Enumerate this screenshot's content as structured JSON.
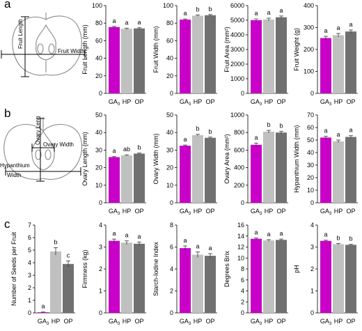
{
  "panels": [
    {
      "letter": "a",
      "diagram_labels": [
        "Fruit Length",
        "Fruit Width"
      ]
    },
    {
      "letter": "b",
      "diagram_labels": [
        "Ovary Length",
        "Ovary Width",
        "Hypanthium",
        "Width"
      ]
    },
    {
      "letter": "c",
      "diagram_labels": []
    }
  ],
  "colors": {
    "GA3": "#c800c8",
    "HP": "#c0c0c0",
    "OP": "#707070"
  },
  "chart_data": [
    {
      "type": "bar",
      "categories": [
        "GA3",
        "HP",
        "OP"
      ],
      "values": [
        75.5,
        73.5,
        74
      ],
      "errors": [
        0.8,
        0.8,
        0.8
      ],
      "letters": [
        "a",
        "a",
        "a"
      ],
      "ylabel": "Fruit Length (mm)",
      "ylim": [
        0,
        100
      ],
      "yticks": [
        "0",
        "20",
        "40",
        "60",
        "80",
        "100"
      ]
    },
    {
      "type": "bar",
      "categories": [
        "GA3",
        "HP",
        "OP"
      ],
      "values": [
        84,
        88.5,
        89
      ],
      "errors": [
        0.8,
        0.8,
        0.8
      ],
      "letters": [
        "a",
        "b",
        "b"
      ],
      "ylabel": "Fruit Width (mm)",
      "ylim": [
        0,
        100
      ],
      "yticks": [
        "0",
        "20",
        "40",
        "60",
        "80",
        "100"
      ]
    },
    {
      "type": "bar",
      "categories": [
        "GA3",
        "HP",
        "OP"
      ],
      "values": [
        5000,
        5050,
        5200
      ],
      "errors": [
        90,
        90,
        90
      ],
      "letters": [
        "a",
        "a",
        "a"
      ],
      "ylabel": "Fruit Area (mm²)",
      "ylim": [
        0,
        6000
      ],
      "yticks": [
        "0",
        "1000",
        "2000",
        "3000",
        "4000",
        "5000",
        "6000"
      ]
    },
    {
      "type": "bar",
      "categories": [
        "GA3",
        "HP",
        "OP"
      ],
      "values": [
        252,
        265,
        282
      ],
      "errors": [
        8,
        8,
        7
      ],
      "letters": [
        "a",
        "a",
        "a"
      ],
      "ylabel": "Fruit Weight (g)",
      "ylim": [
        0,
        400
      ],
      "yticks": [
        "0",
        "100",
        "200",
        "300",
        "400"
      ]
    },
    {
      "type": "bar",
      "categories": [
        "GA3",
        "HP",
        "OP"
      ],
      "values": [
        26,
        27,
        28
      ],
      "errors": [
        0.3,
        0.3,
        0.3
      ],
      "letters": [
        "a",
        "ab",
        "b"
      ],
      "ylabel": "Ovary Length (mm)",
      "ylim": [
        0,
        50
      ],
      "yticks": [
        "0",
        "10",
        "20",
        "30",
        "40",
        "50"
      ]
    },
    {
      "type": "bar",
      "categories": [
        "GA3",
        "HP",
        "OP"
      ],
      "values": [
        32.5,
        38.5,
        37
      ],
      "errors": [
        0.4,
        0.5,
        0.4
      ],
      "letters": [
        "a",
        "b",
        "b"
      ],
      "ylabel": "Ovary Width (mm)",
      "ylim": [
        0,
        50
      ],
      "yticks": [
        "0",
        "10",
        "20",
        "30",
        "40",
        "50"
      ]
    },
    {
      "type": "bar",
      "categories": [
        "GA3",
        "HP",
        "OP"
      ],
      "values": [
        660,
        810,
        800
      ],
      "errors": [
        20,
        15,
        15
      ],
      "letters": [
        "a",
        "b",
        "b"
      ],
      "ylabel": "Ovary Area (mm²)",
      "ylim": [
        0,
        1000
      ],
      "yticks": [
        "0",
        "200",
        "400",
        "600",
        "800",
        "1000"
      ]
    },
    {
      "type": "bar",
      "categories": [
        "GA3",
        "HP",
        "OP"
      ],
      "values": [
        52,
        49,
        52.5
      ],
      "errors": [
        1,
        1,
        1
      ],
      "letters": [
        "a",
        "a",
        "a"
      ],
      "ylabel": "Hypanthium Width (mm)",
      "ylim": [
        0,
        70
      ],
      "yticks": [
        "0",
        "10",
        "20",
        "30",
        "40",
        "50",
        "60",
        "70"
      ]
    },
    {
      "type": "bar",
      "categories": [
        "GA3",
        "HP",
        "OP"
      ],
      "values": [
        0.05,
        4.9,
        3.9
      ],
      "errors": [
        0.02,
        0.3,
        0.25
      ],
      "letters": [
        "a",
        "b",
        "c"
      ],
      "ylabel": "Number of Seeds per Fruit",
      "ylim": [
        0,
        7
      ],
      "yticks": [
        "0",
        "1",
        "2",
        "3",
        "4",
        "5",
        "6",
        "7"
      ]
    },
    {
      "type": "bar",
      "categories": [
        "GA3",
        "HP",
        "OP"
      ],
      "values": [
        3.28,
        3.2,
        3.15
      ],
      "errors": [
        0.08,
        0.08,
        0.08
      ],
      "letters": [
        "a",
        "a",
        "a"
      ],
      "ylabel": "Firmness (kg)",
      "ylim": [
        0,
        4
      ],
      "yticks": [
        "0",
        "1",
        "2",
        "3",
        "4"
      ]
    },
    {
      "type": "bar",
      "categories": [
        "GA3",
        "HP",
        "OP"
      ],
      "values": [
        5.9,
        5.3,
        5.2
      ],
      "errors": [
        0.2,
        0.25,
        0.2
      ],
      "letters": [
        "a",
        "a",
        "a"
      ],
      "ylabel": "Starch-Iodine Index",
      "ylim": [
        0,
        8
      ],
      "yticks": [
        "0",
        "2",
        "4",
        "6",
        "8"
      ]
    },
    {
      "type": "bar",
      "categories": [
        "GA3",
        "HP",
        "OP"
      ],
      "values": [
        13.5,
        13.2,
        13.3
      ],
      "errors": [
        0.15,
        0.15,
        0.15
      ],
      "letters": [
        "a",
        "a",
        "a"
      ],
      "ylabel": "Degrees Brix",
      "ylim": [
        0,
        16
      ],
      "yticks": [
        "0",
        "2",
        "4",
        "6",
        "8",
        "10",
        "12",
        "14",
        "16"
      ]
    },
    {
      "type": "bar",
      "categories": [
        "GA3",
        "HP",
        "OP"
      ],
      "values": [
        3.28,
        3.13,
        3.1
      ],
      "errors": [
        0.03,
        0.03,
        0.02
      ],
      "letters": [
        "a",
        "b",
        "b"
      ],
      "ylabel": "pH",
      "ylim": [
        0,
        4
      ],
      "yticks": [
        "0",
        "1",
        "2",
        "3",
        "4"
      ]
    }
  ]
}
